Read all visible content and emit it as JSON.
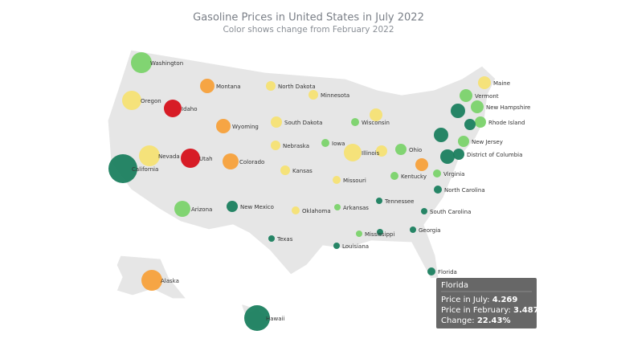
{
  "chart_data": {
    "type": "bubble-map",
    "title": "Gasoline Prices in United States in July 2022",
    "subtitle": "Color shows change from February 2022",
    "points": [
      {
        "label": "Washington",
        "color": "#7bd36b"
      },
      {
        "label": "Montana",
        "color": "#f7a13b"
      },
      {
        "label": "North Dakota",
        "color": "#f6e274"
      },
      {
        "label": "Maine",
        "color": "#f6e274"
      },
      {
        "label": "Oregon",
        "color": "#f6e274"
      },
      {
        "label": "Idaho",
        "color": "#d6111b"
      },
      {
        "label": "Minnesota",
        "color": "#f6e274"
      },
      {
        "label": "Vermont",
        "color": "#7bd36b"
      },
      {
        "label": "New Hampshire",
        "color": "#7bd36b"
      },
      {
        "label": null,
        "color": "#f6e274"
      },
      {
        "label": "Wisconsin",
        "color": "#7bd36b"
      },
      {
        "label": null,
        "color": "#1b7f5f"
      },
      {
        "label": "Rhode Island",
        "color": "#7bd36b"
      },
      {
        "label": null,
        "color": "#1b7f5f"
      },
      {
        "label": "Wyoming",
        "color": "#f7a13b"
      },
      {
        "label": "South Dakota",
        "color": "#f6e274"
      },
      {
        "label": null,
        "color": "#1b7f5f"
      },
      {
        "label": "New Jersey",
        "color": "#7bd36b"
      },
      {
        "label": "Iowa",
        "color": "#7bd36b"
      },
      {
        "label": "Nebraska",
        "color": "#f6e274"
      },
      {
        "label": "Illinois",
        "color": "#f6e274"
      },
      {
        "label": null,
        "color": "#f6e274"
      },
      {
        "label": "Ohio",
        "color": "#7bd36b"
      },
      {
        "label": "Nevada",
        "color": "#f6e274"
      },
      {
        "label": "Utah",
        "color": "#d6111b"
      },
      {
        "label": null,
        "color": "#1b7f5f"
      },
      {
        "label": "District of Columbia",
        "color": "#1b7f5f"
      },
      {
        "label": "California",
        "color": "#1b7f5f"
      },
      {
        "label": "Colorado",
        "color": "#f7a13b"
      },
      {
        "label": null,
        "color": "#f7a13b"
      },
      {
        "label": "Kansas",
        "color": "#f6e274"
      },
      {
        "label": "Virginia",
        "color": "#7bd36b"
      },
      {
        "label": "Kentucky",
        "color": "#7bd36b"
      },
      {
        "label": "Missouri",
        "color": "#f6e274"
      },
      {
        "label": "North Carolina",
        "color": "#1b7f5f"
      },
      {
        "label": "Tennessee",
        "color": "#1b7f5f"
      },
      {
        "label": "Arizona",
        "color": "#7bd36b"
      },
      {
        "label": "New Mexico",
        "color": "#1b7f5f"
      },
      {
        "label": "Arkansas",
        "color": "#7bd36b"
      },
      {
        "label": "Oklahoma",
        "color": "#f6e274"
      },
      {
        "label": "South Carolina",
        "color": "#1b7f5f"
      },
      {
        "label": "Georgia",
        "color": "#1b7f5f"
      },
      {
        "label": "Mississippi",
        "color": "#7bd36b"
      },
      {
        "label": null,
        "color": "#1b7f5f"
      },
      {
        "label": "Texas",
        "color": "#1b7f5f"
      },
      {
        "label": "Louisiana",
        "color": "#1b7f5f"
      },
      {
        "label": "Florida",
        "color": "#1b7f5f"
      },
      {
        "label": "Alaska",
        "color": "#f7a13b"
      },
      {
        "label": "Hawaii",
        "color": "#1b7f5f"
      }
    ],
    "tooltip": {
      "title": "Florida",
      "rows": [
        {
          "label": "Price in July:",
          "value": "4.269"
        },
        {
          "label": "Price in February:",
          "value": "3.487"
        },
        {
          "label": "Change:",
          "value": "22.43%"
        }
      ]
    }
  }
}
